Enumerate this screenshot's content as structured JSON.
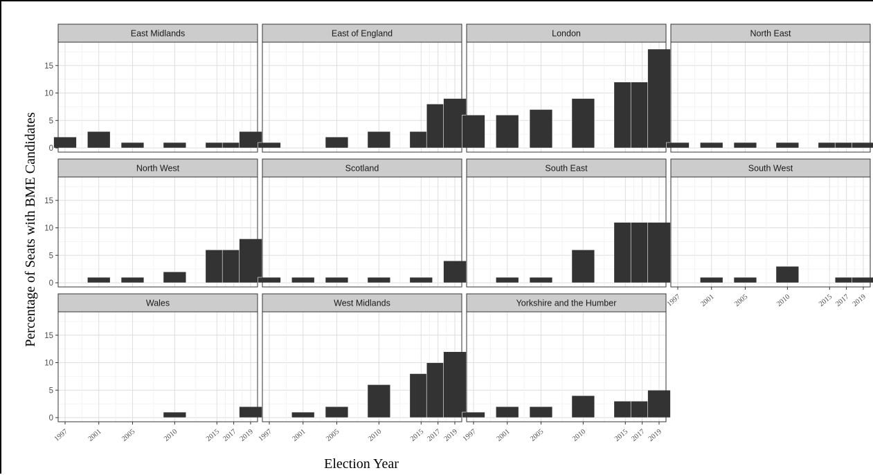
{
  "chart_data": {
    "type": "bar",
    "layout": "facet-wrap",
    "xlabel": "Election Year",
    "ylabel": "Percentage of Seats with BME Candidates",
    "x": [
      1997,
      2001,
      2005,
      2010,
      2015,
      2017,
      2019
    ],
    "x_tick_labels": [
      "1997",
      "2001",
      "2005",
      "2010",
      "2015",
      "2017",
      "2019"
    ],
    "ylim": [
      0,
      19
    ],
    "y_ticks": [
      0,
      5,
      10,
      15
    ],
    "grid": true,
    "bar_color": "#333333",
    "panel_strip_color": "#cccccc",
    "facets": [
      {
        "name": "East Midlands",
        "values": [
          2,
          3,
          1,
          1,
          1,
          1,
          3
        ]
      },
      {
        "name": "East of England",
        "values": [
          1,
          0,
          2,
          3,
          3,
          8,
          9
        ]
      },
      {
        "name": "London",
        "values": [
          6,
          6,
          7,
          9,
          12,
          12,
          18
        ]
      },
      {
        "name": "North East",
        "values": [
          1,
          1,
          1,
          1,
          1,
          1,
          1
        ]
      },
      {
        "name": "North West",
        "values": [
          0,
          1,
          1,
          2,
          6,
          6,
          8
        ]
      },
      {
        "name": "Scotland",
        "values": [
          1,
          1,
          1,
          1,
          1,
          0,
          4
        ]
      },
      {
        "name": "South East",
        "values": [
          0,
          1,
          1,
          6,
          11,
          11,
          11
        ]
      },
      {
        "name": "South West",
        "values": [
          0,
          1,
          1,
          3,
          0,
          1,
          1
        ]
      },
      {
        "name": "Wales",
        "values": [
          0,
          0,
          0,
          1,
          0,
          0,
          2
        ]
      },
      {
        "name": "West Midlands",
        "values": [
          0,
          1,
          2,
          6,
          8,
          10,
          12
        ]
      },
      {
        "name": "Yorkshire and the Humber",
        "values": [
          1,
          2,
          2,
          4,
          3,
          3,
          5
        ]
      }
    ]
  }
}
